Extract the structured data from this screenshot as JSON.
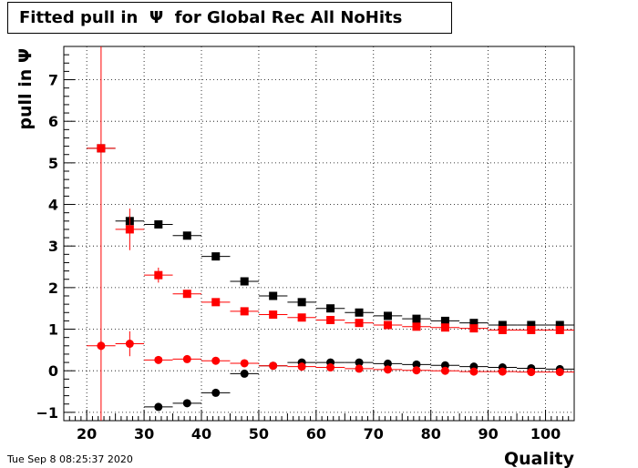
{
  "title": "Fitted pull in  Ψ  for Global Rec All NoHits",
  "timestamp": "Tue Sep  8 08:25:37 2020",
  "chart_data": {
    "type": "scatter",
    "title": "Fitted pull in  Ψ  for Global Rec All NoHits",
    "xlabel": "Quality",
    "ylabel": "pull in  Ψ",
    "xlim": [
      16,
      105
    ],
    "ylim": [
      -1.2,
      7.8
    ],
    "xticks": [
      20,
      30,
      40,
      50,
      60,
      70,
      80,
      90,
      100
    ],
    "yticks": [
      -1,
      0,
      1,
      2,
      3,
      4,
      5,
      6,
      7
    ],
    "grid": true,
    "x_bin_halfwidth": 2.5,
    "vertical_line_x": 22.5,
    "colors": {
      "black": "#000000",
      "red": "#ff0000"
    },
    "series": [
      {
        "color": "black",
        "marker": "square",
        "x": [
          22.5,
          27.5,
          32.5,
          37.5,
          42.5,
          47.5,
          52.5,
          57.5,
          62.5,
          67.5,
          72.5,
          77.5,
          82.5,
          87.5,
          92.5,
          97.5,
          102.5
        ],
        "y": [
          5.35,
          3.6,
          3.52,
          3.25,
          2.75,
          2.15,
          1.8,
          1.65,
          1.5,
          1.4,
          1.32,
          1.25,
          1.2,
          1.15,
          1.1,
          1.1,
          1.1
        ],
        "yerr": [
          0.05,
          0.12,
          0.06,
          0.06,
          0.05,
          0.04,
          0.04,
          0.03,
          0.03,
          0.03,
          0.03,
          0.03,
          0.03,
          0.03,
          0.03,
          0.03,
          0.03
        ]
      },
      {
        "color": "red",
        "marker": "square",
        "x": [
          22.5,
          27.5,
          32.5,
          37.5,
          42.5,
          47.5,
          52.5,
          57.5,
          62.5,
          67.5,
          72.5,
          77.5,
          82.5,
          87.5,
          92.5,
          97.5,
          102.5
        ],
        "y": [
          5.35,
          3.4,
          2.3,
          1.85,
          1.65,
          1.43,
          1.35,
          1.28,
          1.22,
          1.15,
          1.1,
          1.06,
          1.04,
          1.02,
          0.98,
          0.98,
          0.98
        ],
        "yerr": [
          0.05,
          0.5,
          0.18,
          0.08,
          0.06,
          0.05,
          0.04,
          0.04,
          0.04,
          0.03,
          0.03,
          0.03,
          0.03,
          0.03,
          0.03,
          0.03,
          0.03
        ]
      },
      {
        "color": "black",
        "marker": "circle",
        "x": [
          32.5,
          37.5,
          42.5,
          47.5,
          52.5,
          57.5,
          62.5,
          67.5,
          72.5,
          77.5,
          82.5,
          87.5,
          92.5,
          97.5,
          102.5
        ],
        "y": [
          -0.87,
          -0.78,
          -0.53,
          -0.07,
          0.12,
          0.2,
          0.2,
          0.2,
          0.17,
          0.15,
          0.13,
          0.1,
          0.08,
          0.06,
          0.04
        ],
        "yerr": [
          0.04,
          0.04,
          0.04,
          0.03,
          0.03,
          0.03,
          0.03,
          0.03,
          0.03,
          0.03,
          0.03,
          0.03,
          0.03,
          0.03,
          0.03
        ]
      },
      {
        "color": "red",
        "marker": "circle",
        "x": [
          22.5,
          27.5,
          32.5,
          37.5,
          42.5,
          47.5,
          52.5,
          57.5,
          62.5,
          67.5,
          72.5,
          77.5,
          82.5,
          87.5,
          92.5,
          97.5,
          102.5
        ],
        "y": [
          0.6,
          0.65,
          0.26,
          0.28,
          0.24,
          0.18,
          0.12,
          0.1,
          0.08,
          0.05,
          0.03,
          0.01,
          0.0,
          -0.02,
          -0.02,
          -0.03,
          -0.03
        ],
        "yerr": [
          0.12,
          0.3,
          0.06,
          0.05,
          0.04,
          0.04,
          0.03,
          0.03,
          0.03,
          0.03,
          0.03,
          0.03,
          0.03,
          0.03,
          0.03,
          0.03,
          0.03
        ]
      }
    ]
  }
}
